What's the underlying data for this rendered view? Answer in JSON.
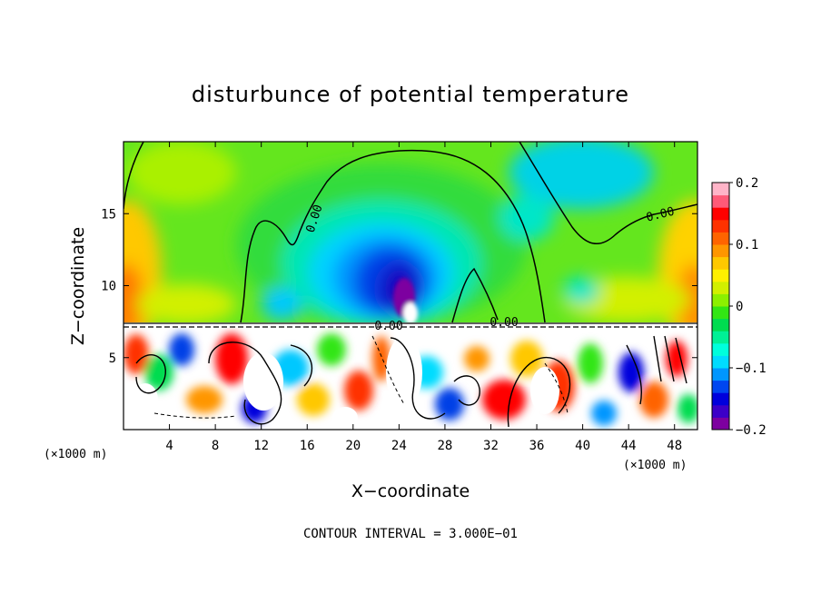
{
  "chart_data": {
    "type": "heatmap",
    "title": "disturbunce of potential temperature",
    "xlabel": "X−coordinate",
    "ylabel": "Z−coordinate",
    "x_unit": "(×1000 m)",
    "z_unit": "(×1000 m)",
    "xlim": [
      0,
      50
    ],
    "zlim": [
      0,
      20
    ],
    "x_ticks": [
      4,
      8,
      12,
      16,
      20,
      24,
      28,
      32,
      36,
      40,
      44,
      48
    ],
    "x_tick_labels": [
      "4",
      "8",
      "12",
      "16",
      "20",
      "24",
      "28",
      "32",
      "36",
      "40",
      "44",
      "48"
    ],
    "z_ticks": [
      5,
      10,
      15
    ],
    "z_tick_labels": [
      "5",
      "10",
      "15"
    ],
    "colorbar": {
      "range": [
        -0.2,
        0.2
      ],
      "ticks": [
        -0.2,
        -0.1,
        0,
        0.1,
        0.2
      ],
      "tick_labels": [
        "−0.2",
        "−0.1",
        "0",
        "0.1",
        "0.2"
      ],
      "colors": [
        "#7d00a0",
        "#3c00c8",
        "#0000dc",
        "#0046f0",
        "#0096ff",
        "#00dcff",
        "#00ffdc",
        "#00f096",
        "#00dc50",
        "#32e614",
        "#8cf000",
        "#d2f000",
        "#fff000",
        "#ffc800",
        "#ff9600",
        "#ff6400",
        "#ff3200",
        "#ff0000",
        "#ff5a78",
        "#ffb4c8"
      ]
    },
    "contour_labels": [
      "0.00",
      "0.00",
      "0.00",
      "0.00"
    ],
    "contour_interval_text": "CONTOUR INTERVAL =  3.000E−01"
  }
}
